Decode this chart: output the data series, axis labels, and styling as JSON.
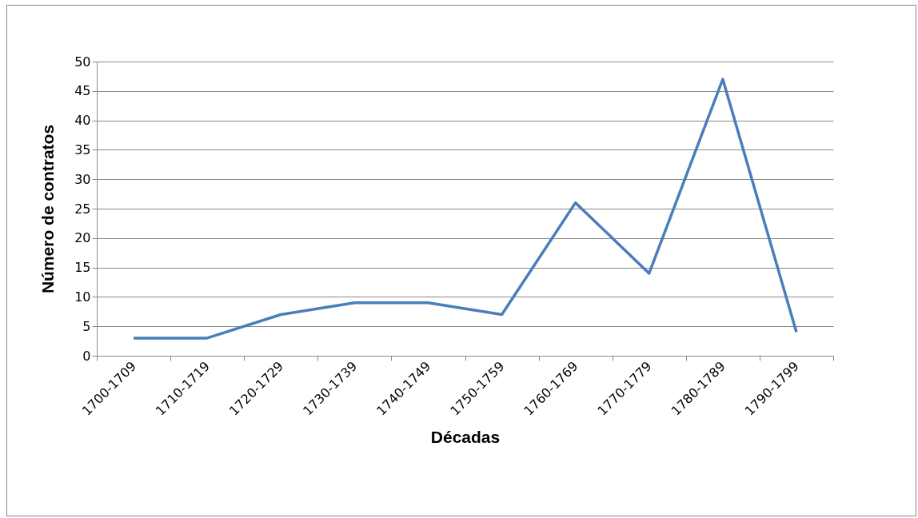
{
  "chart_data": {
    "type": "line",
    "xlabel": "Décadas",
    "ylabel": "Número de contratos",
    "categories": [
      "1700-1709",
      "1710-1719",
      "1720-1729",
      "1730-1739",
      "1740-1749",
      "1750-1759",
      "1760-1769",
      "1770-1779",
      "1780-1789",
      "1790-1799"
    ],
    "series": [
      {
        "color": "#4a7ebb",
        "values": [
          3,
          3,
          7,
          9,
          9,
          7,
          26,
          14,
          47,
          4
        ]
      }
    ],
    "ylim": [
      0,
      50
    ],
    "yticks": [
      0,
      5,
      10,
      15,
      20,
      25,
      30,
      35,
      40,
      45,
      50
    ],
    "grid": "y",
    "marker": "none",
    "line_style": "solid"
  }
}
